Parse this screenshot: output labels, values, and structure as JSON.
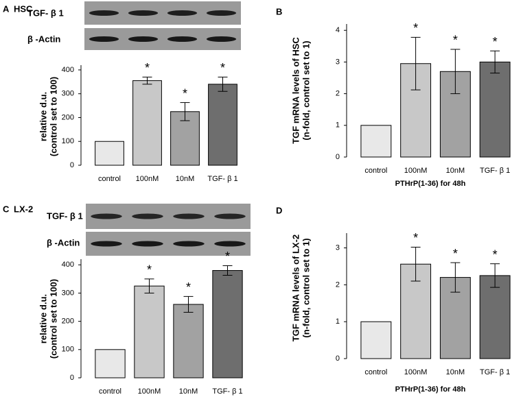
{
  "chart_data": [
    {
      "type": "bar",
      "panel_label": "A",
      "title": "HSC",
      "blot_labels": [
        "TGF- β 1",
        "β -Actin"
      ],
      "ylabel": [
        "relative d.u.",
        "(control set to 100)"
      ],
      "categories": [
        "control",
        "100nM",
        "10nM",
        "TGF- β 1"
      ],
      "values": [
        100,
        355,
        225,
        340
      ],
      "errors": [
        0,
        15,
        38,
        30
      ],
      "significance": [
        null,
        "*",
        "*",
        "*"
      ],
      "colors": [
        "#e8e8e8",
        "#c8c8c8",
        "#a2a2a2",
        "#6e6e6e"
      ],
      "ylim": [
        0,
        420
      ],
      "yticks": [
        0,
        100,
        200,
        300,
        400
      ]
    },
    {
      "type": "bar",
      "panel_label": "B",
      "ylabel": [
        "TGF mRNA levels of HSC",
        "(n-fold, control set to 1)"
      ],
      "xlabel": "PTHrP(1-36) for 48h",
      "categories": [
        "control",
        "100nM",
        "10nM",
        "TGF- β 1"
      ],
      "values": [
        1,
        2.95,
        2.7,
        3.0
      ],
      "errors": [
        0,
        0.83,
        0.7,
        0.35
      ],
      "significance": [
        null,
        "*",
        "*",
        "*"
      ],
      "colors": [
        "#e8e8e8",
        "#c8c8c8",
        "#a2a2a2",
        "#6e6e6e"
      ],
      "ylim": [
        0,
        4.2
      ],
      "yticks": [
        0,
        1,
        2,
        3,
        4
      ]
    },
    {
      "type": "bar",
      "panel_label": "C",
      "title": "LX-2",
      "blot_labels": [
        "TGF- β 1",
        "β -Actin"
      ],
      "ylabel": [
        "relative d.u.",
        "(control set to 100)"
      ],
      "categories": [
        "control",
        "100nM",
        "10nM",
        "TGF- β 1"
      ],
      "values": [
        100,
        325,
        260,
        380
      ],
      "errors": [
        0,
        25,
        28,
        17
      ],
      "significance": [
        null,
        "*",
        "*",
        "*"
      ],
      "colors": [
        "#e8e8e8",
        "#c8c8c8",
        "#a2a2a2",
        "#6e6e6e"
      ],
      "ylim": [
        0,
        420
      ],
      "yticks": [
        0,
        100,
        200,
        300,
        400
      ]
    },
    {
      "type": "bar",
      "panel_label": "D",
      "ylabel": [
        "TGF mRNA levels of LX-2",
        "(n-fold, control set to 1)"
      ],
      "xlabel": "PTHrP(1-36) for 48h",
      "categories": [
        "control",
        "100nM",
        "10nM",
        "TGF- β 1"
      ],
      "values": [
        1,
        2.56,
        2.2,
        2.25
      ],
      "errors": [
        0,
        0.46,
        0.4,
        0.32
      ],
      "significance": [
        null,
        "*",
        "*",
        "*"
      ],
      "colors": [
        "#e8e8e8",
        "#c8c8c8",
        "#a2a2a2",
        "#6e6e6e"
      ],
      "ylim": [
        0,
        3.4
      ],
      "yticks": [
        0,
        1,
        2,
        3
      ]
    }
  ]
}
